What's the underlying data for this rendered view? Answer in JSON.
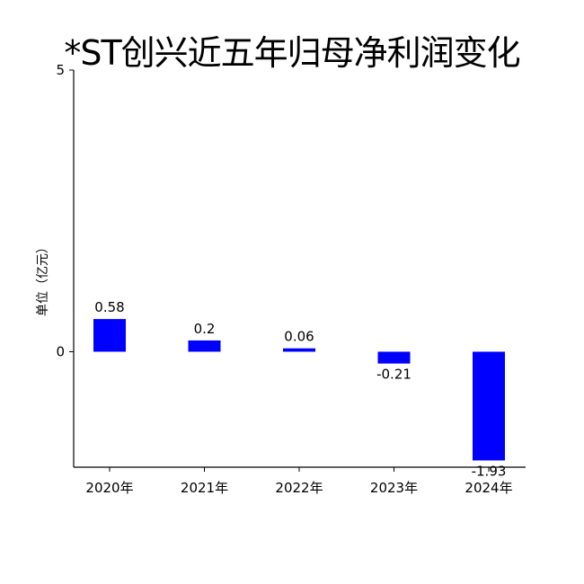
{
  "chart_data": {
    "type": "bar",
    "title": "*ST创兴近五年归母净利润变化",
    "ylabel": "单位（亿元）",
    "xlabel": "",
    "categories": [
      "2020年",
      "2021年",
      "2022年",
      "2023年",
      "2024年"
    ],
    "values": [
      0.58,
      0.2,
      0.06,
      -0.21,
      -1.93
    ],
    "value_labels": [
      "0.58",
      "0.2",
      "0.06",
      "-0.21",
      "-1.93"
    ],
    "ylim": [
      -2.05,
      5
    ],
    "yticks": [
      0,
      5
    ],
    "ytick_labels": [
      "0",
      "5"
    ],
    "bar_color": "#0000ff",
    "grid": false,
    "legend": "none"
  }
}
